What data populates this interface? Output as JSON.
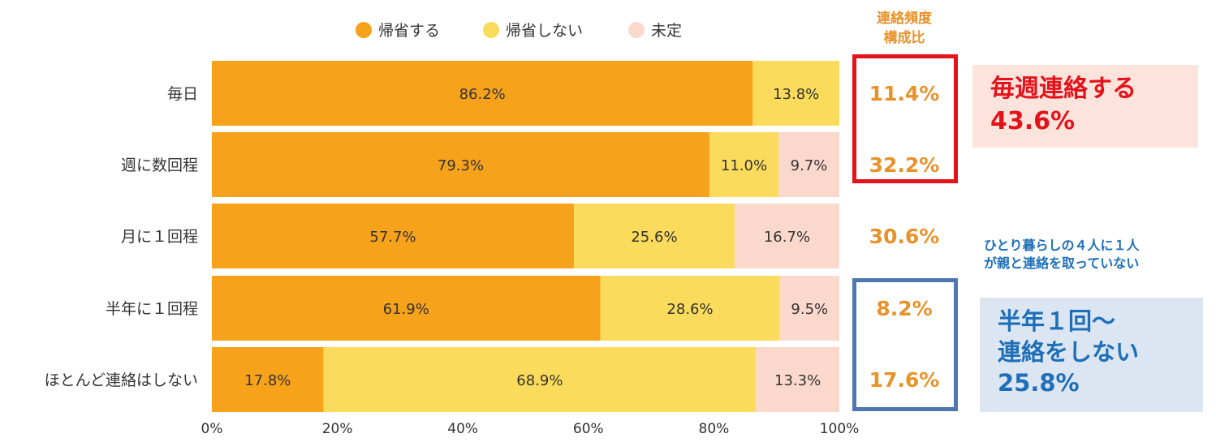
{
  "chart_data": {
    "type": "bar",
    "orientation": "horizontal-stacked-100",
    "categories": [
      "毎日",
      "週に数回程",
      "月に１回程",
      "半年に１回程",
      "ほとんど連絡はしない"
    ],
    "series": [
      {
        "name": "帰省する",
        "color": "#F7A21B",
        "values": [
          86.2,
          79.3,
          57.7,
          61.9,
          17.8
        ]
      },
      {
        "name": "帰省しない",
        "color": "#FBDB5B",
        "values": [
          13.8,
          11.0,
          25.6,
          28.6,
          68.9
        ]
      },
      {
        "name": "未定",
        "color": "#FBD8CC",
        "values": [
          0,
          9.7,
          16.7,
          9.5,
          13.3
        ]
      }
    ],
    "x_ticks": [
      "0%",
      "20%",
      "40%",
      "60%",
      "80%",
      "100%"
    ],
    "xlim": [
      0,
      100
    ],
    "legend_position": "top",
    "grid": false,
    "ratio_column": {
      "header": [
        "連絡頻度",
        "構成比"
      ],
      "values": [
        "11.4%",
        "32.2%",
        "30.6%",
        "8.2%",
        "17.6%"
      ]
    }
  },
  "annotations": {
    "weekly": {
      "line1": "毎週連絡する",
      "line2": "43.6%"
    },
    "alone_note": {
      "line1": "ひとり暮らしの４人に１人",
      "line2": "が親と連絡を取っていない"
    },
    "rare": {
      "line1": "半年１回～",
      "line2": "連絡をしない",
      "line3": "25.8%"
    }
  },
  "colors": {
    "accent_red": "#E4121B",
    "accent_blue": "#1E6FB8",
    "ratio_orange": "#E8922A"
  }
}
